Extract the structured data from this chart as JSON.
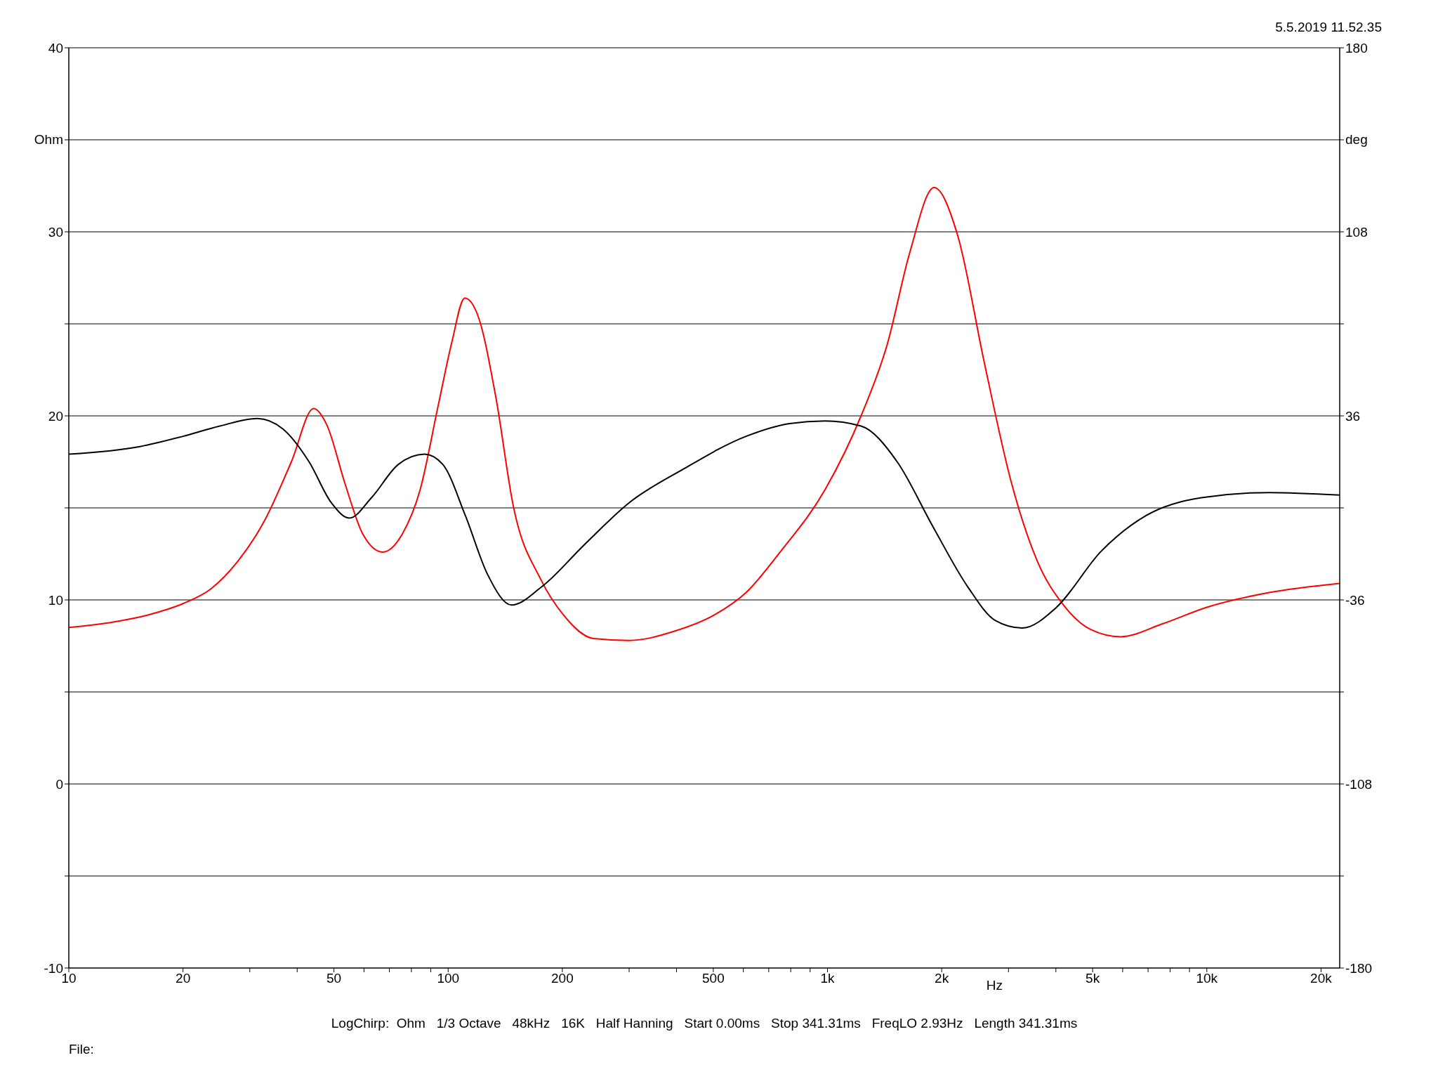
{
  "chart_data": {
    "type": "line",
    "annotations": [
      "5.5.2019 11.52.35",
      "LogChirp:  Ohm   1/3 Octave   48kHz   16K   Half Hanning   Start 0.00ms   Stop 341.31ms   FreqLO 2.93Hz   Length 341.31ms",
      "File:"
    ],
    "xlabel": "Hz",
    "ylabel": "Ohm",
    "y2label": "deg",
    "log": "x",
    "grid": true,
    "marker": "none",
    "line_style": "solid",
    "xlim": [
      10,
      22400
    ],
    "xticks": [
      10,
      20,
      {
        "value": 30,
        "label": null
      },
      {
        "value": 40,
        "label": null
      },
      50,
      {
        "value": 60,
        "label": null
      },
      {
        "value": 70,
        "label": null
      },
      {
        "value": 80,
        "label": null
      },
      {
        "value": 90,
        "label": null
      },
      100,
      200,
      {
        "value": 300,
        "label": null
      },
      {
        "value": 400,
        "label": null
      },
      500,
      {
        "value": 600,
        "label": null
      },
      {
        "value": 700,
        "label": null
      },
      {
        "value": 800,
        "label": null
      },
      {
        "value": 900,
        "label": null
      },
      {
        "value": 1000,
        "label": "1k"
      },
      {
        "value": 2000,
        "label": "2k"
      },
      {
        "value": 3000,
        "label": null
      },
      {
        "value": 4000,
        "label": null
      },
      {
        "value": 5000,
        "label": "5k"
      },
      {
        "value": 6000,
        "label": null
      },
      {
        "value": 7000,
        "label": null
      },
      {
        "value": 8000,
        "label": null
      },
      {
        "value": 9000,
        "label": null
      },
      {
        "value": 10000,
        "label": "10k"
      },
      {
        "value": 20000,
        "label": "20k"
      }
    ],
    "ylim": [
      -10,
      40
    ],
    "yticks": [
      -10,
      {
        "value": -5,
        "label": null
      },
      0,
      {
        "value": 5,
        "label": null
      },
      10,
      {
        "value": 15,
        "label": null
      },
      20,
      {
        "value": 25,
        "label": null
      },
      30,
      {
        "value": 35,
        "label": null
      },
      40
    ],
    "y2lim": [
      -180,
      180
    ],
    "y2ticks": [
      -180,
      {
        "value": -144,
        "label": null
      },
      -108,
      {
        "value": -72,
        "label": null
      },
      -36,
      {
        "value": 0,
        "label": null
      },
      36,
      {
        "value": 72,
        "label": null
      },
      108,
      {
        "value": 144,
        "label": null
      },
      180
    ],
    "series": [
      {
        "color": "#ff0000",
        "x": [
          10,
          13.1,
          16.3,
          20,
          23.7,
          27.9,
          32.8,
          38.6,
          44.2,
          47.9,
          53.5,
          59.5,
          67.2,
          75.8,
          84.4,
          94,
          102,
          110.6,
          120,
          133.6,
          148.5,
          175.6,
          201,
          242,
          300,
          395,
          505,
          610,
          750,
          986,
          1226,
          1438,
          1644,
          1910,
          2204,
          2590,
          3042,
          3574,
          4198,
          4932,
          5920,
          7640,
          10000,
          14600,
          22400
        ],
        "values": [
          8.5,
          8.8,
          9.2,
          9.8,
          10.6,
          12.1,
          14.3,
          17.5,
          20.4,
          19.5,
          16.3,
          13.6,
          12.6,
          13.6,
          16,
          20.5,
          23.9,
          26.4,
          25.4,
          21,
          15.1,
          11.1,
          9.2,
          7.9,
          7.8,
          8.3,
          9.2,
          10.4,
          12.6,
          16,
          20,
          23.9,
          28.8,
          32.4,
          29.8,
          22.9,
          16.5,
          12.1,
          9.7,
          8.4,
          8,
          8.7,
          9.6,
          10.4,
          10.9
        ]
      },
      {
        "color": "#000000",
        "axis": "y2",
        "x": [
          10,
          15.4,
          20,
          25,
          31.4,
          36.6,
          43,
          49.2,
          54.9,
          62.8,
          73.9,
          86.7,
          96.8,
          111,
          127,
          147,
          176,
          230,
          300,
          415,
          610,
          794,
          986,
          1226,
          1527,
          1891,
          2346,
          2765,
          3259,
          4007,
          5262,
          6917,
          9669,
          14600,
          22400
        ],
        "values": [
          21,
          24,
          28,
          32,
          35,
          31,
          18,
          2,
          -4,
          4,
          17,
          21,
          17,
          -3,
          -26,
          -38,
          -31,
          -14,
          2,
          15,
          28,
          33,
          34,
          32,
          18,
          -7,
          -31,
          -44,
          -47,
          -39,
          -17,
          -3,
          4,
          6,
          5
        ]
      }
    ]
  }
}
